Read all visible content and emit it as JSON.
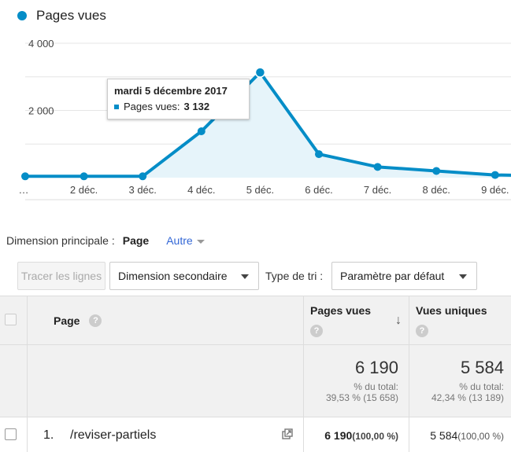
{
  "legend": {
    "label": "Pages vues",
    "color": "#058dc7"
  },
  "chart_data": {
    "type": "area",
    "series": [
      {
        "name": "Pages vues",
        "values": [
          40,
          40,
          40,
          1380,
          3132,
          700,
          320,
          200,
          80,
          50
        ]
      }
    ],
    "x_tick_labels": [
      "…",
      "2 déc.",
      "3 déc.",
      "4 déc.",
      "5 déc.",
      "6 déc.",
      "7 déc.",
      "8 déc.",
      "9 déc."
    ],
    "y_tick_labels": [
      "4 000",
      "2 000"
    ],
    "ylim": [
      0,
      4000
    ],
    "grid": true,
    "color": "#058dc7",
    "fill": "#e6f4fa"
  },
  "tooltip": {
    "date": "mardi 5 décembre 2017",
    "metric": "Pages vues:",
    "value": "3 132"
  },
  "dimension": {
    "label": "Dimension principale :",
    "active": "Page",
    "other": "Autre"
  },
  "controls": {
    "plot_rows": "Tracer les lignes",
    "secondary_dimension": "Dimension secondaire",
    "sort_label": "Type de tri :",
    "sort_value": "Paramètre par défaut"
  },
  "table": {
    "col_page": "Page",
    "col_pageviews": "Pages vues",
    "col_unique": "Vues uniques",
    "help": "?",
    "sort_arrow": "↓",
    "totals": {
      "pageviews": "6 190",
      "pageviews_pct_label": "% du total:",
      "pageviews_pct": "39,53 % (15 658)",
      "unique": "5 584",
      "unique_pct_label": "% du total:",
      "unique_pct": "42,34 % (13 189)"
    },
    "rows": [
      {
        "index": "1.",
        "page": "/reviser-partiels",
        "pageviews": "6 190",
        "pageviews_pct": "(100,00 %)",
        "unique": "5 584",
        "unique_pct": "(100,00 %)"
      }
    ]
  }
}
